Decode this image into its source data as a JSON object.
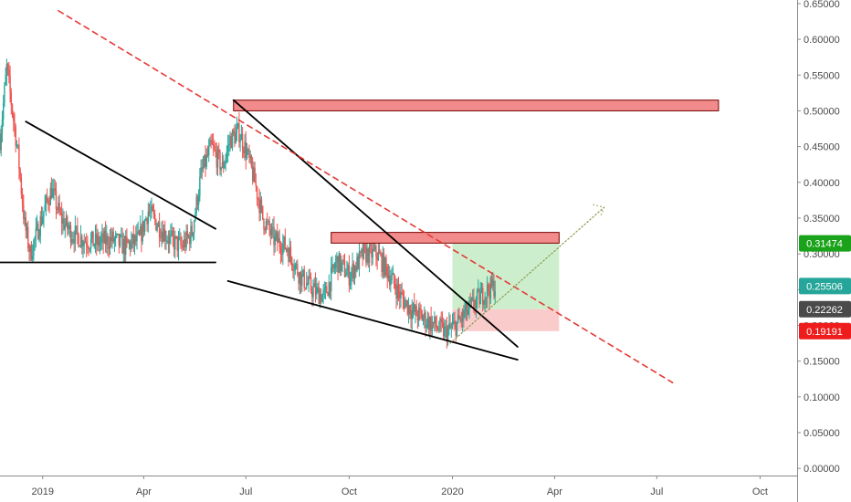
{
  "chart_data": {
    "type": "candlestick",
    "title": "",
    "xlabel": "",
    "ylabel": "",
    "x_tick_labels": [
      "2019",
      "Apr",
      "Jul",
      "Oct",
      "2020",
      "Apr",
      "Jul",
      "Oct"
    ],
    "x_tick_dates": [
      "2019-01-01",
      "2019-04-01",
      "2019-07-01",
      "2019-10-01",
      "2020-01-01",
      "2020-04-01",
      "2020-07-01",
      "2020-10-01"
    ],
    "y_ticks": [
      "0.65000",
      "0.60000",
      "0.55000",
      "0.50000",
      "0.45000",
      "0.40000",
      "0.35000",
      "0.30000",
      "0.25000",
      "0.20000",
      "0.15000",
      "0.10000",
      "0.05000",
      "0.00000"
    ],
    "ylim": [
      -0.01,
      0.655
    ],
    "xlim": [
      "2018-11-24",
      "2020-11-03"
    ],
    "grid": false,
    "colors": {
      "up": "#26a69a",
      "down": "#ef5350",
      "trend": "#000000",
      "resistance_dash": "#e53935",
      "zone_fill": "#f28b8b",
      "zone_edge": "#7a0000",
      "tp": "#c8ecc8",
      "sl": "#f9c5c5"
    },
    "price_path": [
      [
        "2018-11-24",
        0.46
      ],
      [
        "2018-11-30",
        0.56
      ],
      [
        "2018-12-05",
        0.5
      ],
      [
        "2018-12-10",
        0.44
      ],
      [
        "2018-12-16",
        0.34
      ],
      [
        "2018-12-21",
        0.3
      ],
      [
        "2018-12-27",
        0.33
      ],
      [
        "2019-01-02",
        0.36
      ],
      [
        "2019-01-09",
        0.39
      ],
      [
        "2019-01-17",
        0.35
      ],
      [
        "2019-01-26",
        0.33
      ],
      [
        "2019-02-06",
        0.32
      ],
      [
        "2019-02-18",
        0.315
      ],
      [
        "2019-03-04",
        0.32
      ],
      [
        "2019-03-15",
        0.31
      ],
      [
        "2019-03-28",
        0.32
      ],
      [
        "2019-04-05",
        0.36
      ],
      [
        "2019-04-14",
        0.34
      ],
      [
        "2019-04-24",
        0.32
      ],
      [
        "2019-05-05",
        0.31
      ],
      [
        "2019-05-14",
        0.33
      ],
      [
        "2019-05-22",
        0.41
      ],
      [
        "2019-05-31",
        0.45
      ],
      [
        "2019-06-10",
        0.42
      ],
      [
        "2019-06-17",
        0.46
      ],
      [
        "2019-06-25",
        0.47
      ],
      [
        "2019-07-02",
        0.44
      ],
      [
        "2019-07-09",
        0.4
      ],
      [
        "2019-07-16",
        0.35
      ],
      [
        "2019-07-26",
        0.32
      ],
      [
        "2019-08-06",
        0.31
      ],
      [
        "2019-08-18",
        0.27
      ],
      [
        "2019-08-29",
        0.25
      ],
      [
        "2019-09-09",
        0.24
      ],
      [
        "2019-09-20",
        0.29
      ],
      [
        "2019-10-01",
        0.27
      ],
      [
        "2019-10-14",
        0.3
      ],
      [
        "2019-10-26",
        0.3
      ],
      [
        "2019-11-06",
        0.27
      ],
      [
        "2019-11-16",
        0.24
      ],
      [
        "2019-11-26",
        0.22
      ],
      [
        "2019-12-06",
        0.21
      ],
      [
        "2019-12-16",
        0.2
      ],
      [
        "2019-12-26",
        0.19
      ],
      [
        "2020-01-04",
        0.2
      ],
      [
        "2020-01-12",
        0.215
      ],
      [
        "2020-01-20",
        0.23
      ],
      [
        "2020-01-26",
        0.24
      ],
      [
        "2020-02-02",
        0.25
      ],
      [
        "2020-02-08",
        0.255
      ]
    ],
    "annotations": {
      "resistance_dashed_line": {
        "from": [
          "2019-01-15",
          0.64
        ],
        "to": [
          "2020-07-15",
          0.12
        ]
      },
      "triangle_upper": {
        "from": [
          "2018-12-17",
          0.485
        ],
        "to": [
          "2019-06-04",
          0.335
        ]
      },
      "triangle_lower": {
        "from": [
          "2018-11-24",
          0.288
        ],
        "to": [
          "2019-06-04",
          0.288
        ]
      },
      "wedge_upper": {
        "from": [
          "2019-06-20",
          0.515
        ],
        "to": [
          "2020-02-28",
          0.17
        ]
      },
      "wedge_lower": {
        "from": [
          "2019-06-15",
          0.262
        ],
        "to": [
          "2020-02-28",
          0.152
        ]
      },
      "projection_dotted": {
        "from": [
          "2019-12-30",
          0.175
        ],
        "to": [
          "2020-05-15",
          0.365
        ]
      },
      "supply_zone_upper": {
        "from": "2019-06-20",
        "to": "2020-08-25",
        "y": [
          0.5,
          0.515
        ]
      },
      "supply_zone_middle": {
        "from": "2019-09-15",
        "to": "2020-04-05",
        "y": [
          0.315,
          0.33
        ]
      },
      "take_profit_box": {
        "from": "2020-01-01",
        "to": "2020-04-05",
        "y": [
          0.2226,
          0.3147
        ]
      },
      "stop_loss_box": {
        "from": "2020-01-01",
        "to": "2020-04-05",
        "y": [
          0.1919,
          0.2226
        ]
      }
    },
    "price_labels": [
      {
        "text": "0.31474",
        "value": 0.31474,
        "color": "#1aa31a"
      },
      {
        "text": "0.25506",
        "value": 0.25506,
        "color": "#26a69a"
      },
      {
        "text": "0.22262",
        "value": 0.22262,
        "color": "#4a4a4a"
      },
      {
        "text": "0.19191",
        "value": 0.19191,
        "color": "#ee1c1c"
      }
    ]
  }
}
